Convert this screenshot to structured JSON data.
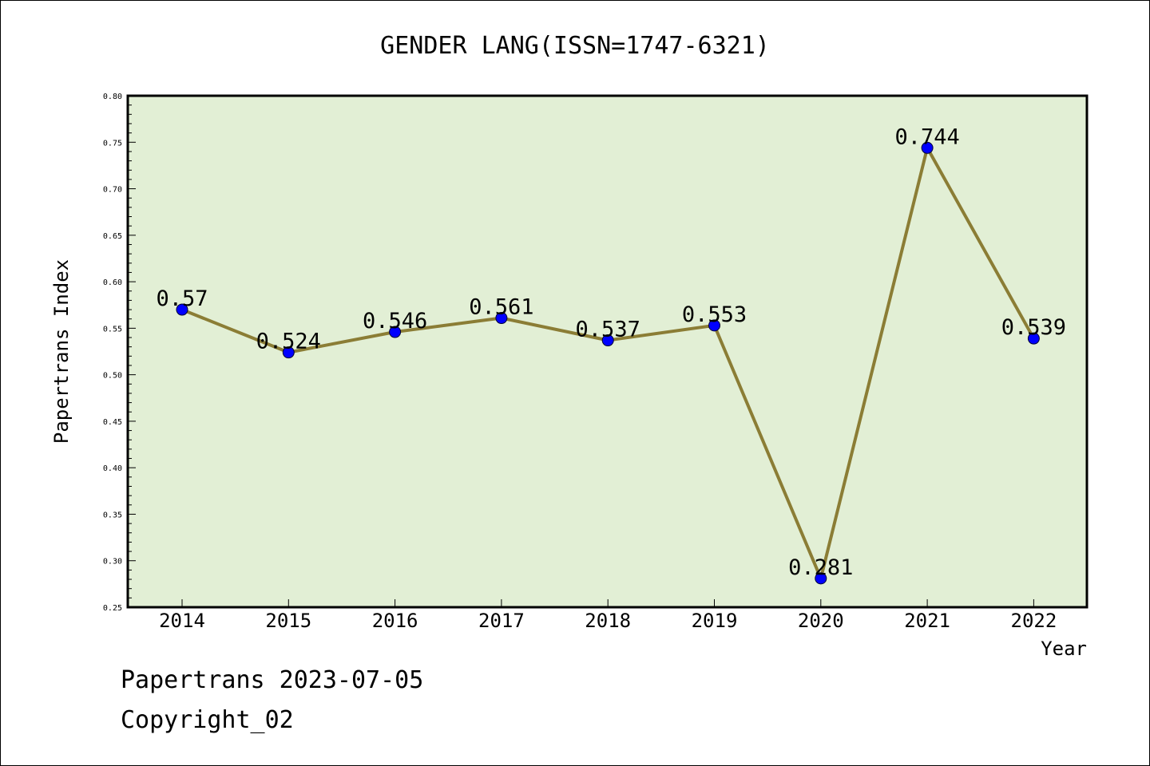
{
  "chart_data": {
    "type": "line",
    "title": "GENDER LANG(ISSN=1747-6321)",
    "xlabel": "Year",
    "ylabel": "Papertrans Index",
    "categories": [
      "2014",
      "2015",
      "2016",
      "2017",
      "2018",
      "2019",
      "2020",
      "2021",
      "2022"
    ],
    "series": [
      {
        "name": "Papertrans Index",
        "values": [
          0.57,
          0.524,
          0.546,
          0.561,
          0.537,
          0.553,
          0.281,
          0.744,
          0.539
        ],
        "labels": [
          "0.57",
          "0.524",
          "0.546",
          "0.561",
          "0.537",
          "0.553",
          "0.281",
          "0.744",
          "0.539"
        ]
      }
    ],
    "ylim": [
      0.25,
      0.8
    ],
    "yticks": [
      "0.25",
      "0.30",
      "0.35",
      "0.40",
      "0.45",
      "0.50",
      "0.55",
      "0.60",
      "0.65",
      "0.70",
      "0.75",
      "0.80"
    ],
    "grid": false,
    "colors": {
      "plot_background": "#e2efd5",
      "line": "#8b7d35",
      "marker": "#0000ff"
    }
  },
  "footer": {
    "date_line": "Papertrans 2023-07-05",
    "copyright": "Copyright_02"
  }
}
